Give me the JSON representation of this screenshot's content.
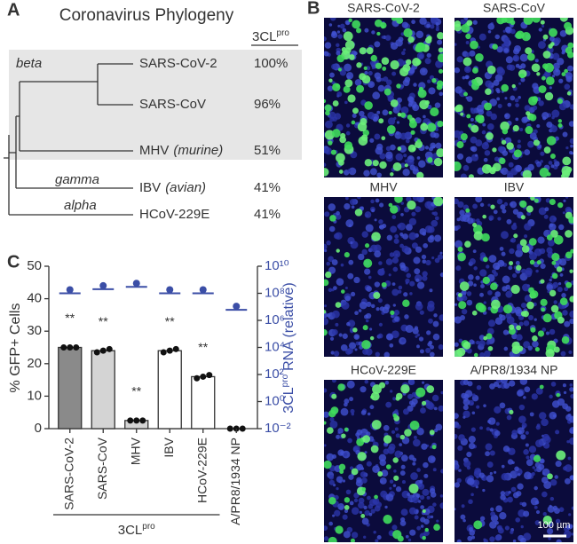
{
  "panels": {
    "a": "A",
    "b": "B",
    "c": "C"
  },
  "phylogeny": {
    "title": "Coronavirus Phylogeny",
    "header": {
      "text": "3CL",
      "superscript": "pro"
    },
    "groups": [
      "beta",
      "gamma",
      "alpha"
    ],
    "leaves": [
      {
        "name": "SARS-CoV-2",
        "identity": "100%"
      },
      {
        "name": "SARS-CoV",
        "identity": "96%"
      },
      {
        "name": "MHV",
        "host": "(murine)",
        "identity": "51%"
      },
      {
        "name": "IBV",
        "host": "(avian)",
        "identity": "41%"
      },
      {
        "name": "HCoV-229E",
        "identity": "41%"
      }
    ]
  },
  "images": {
    "labels": [
      "SARS-CoV-2",
      "SARS-CoV",
      "MHV",
      "IBV",
      "HCoV-229E",
      "A/PR8/1934 NP"
    ],
    "scale_bar": "100 µm"
  },
  "chart_data": {
    "type": "bar",
    "ylabel": "% GFP+ Cells",
    "y2label": {
      "text": "3CL",
      "superscript": "pro",
      "suffix": "RNA (relative)"
    },
    "categories": [
      "SARS-CoV-2",
      "SARS-CoV",
      "MHV",
      "IBV",
      "HCoV-229E",
      "A/PR8/1934 NP"
    ],
    "values": [
      25,
      24,
      2.5,
      24,
      16,
      0
    ],
    "colors": [
      "#8a8a8a",
      "#d4d4d4",
      "#d4d4d4",
      "#ffffff",
      "#ffffff",
      "#ffffff"
    ],
    "replicates": [
      [
        25,
        25,
        25
      ],
      [
        23.5,
        24,
        24.5
      ],
      [
        2.5,
        2.5,
        2.5
      ],
      [
        23.5,
        24,
        24.5
      ],
      [
        15.5,
        16,
        16.5
      ],
      [
        0,
        0,
        0
      ]
    ],
    "significance": [
      "**",
      "**",
      "**",
      "**",
      "**",
      null
    ],
    "rna": {
      "axis": "y2",
      "color": "#3b4ea6",
      "values": [
        100000000,
        200000000,
        300000000,
        100000000,
        100000000,
        6000000
      ]
    },
    "group_label": {
      "text": "3CL",
      "superscript": "pro"
    },
    "ylim": [
      0,
      50
    ],
    "yticks": [
      0,
      10,
      20,
      30,
      40,
      50
    ],
    "y2scale": "log",
    "y2lim": [
      0.01,
      10000000000
    ],
    "y2ticks": [
      {
        "value": 0.01,
        "label": "10⁻²"
      },
      {
        "value": 1,
        "label": "10⁰"
      },
      {
        "value": 100,
        "label": "10²"
      },
      {
        "value": 10000,
        "label": "10⁴"
      },
      {
        "value": 1000000,
        "label": "10⁶"
      },
      {
        "value": 100000000,
        "label": "10⁸"
      },
      {
        "value": 10000000000,
        "label": "10¹⁰"
      }
    ]
  }
}
